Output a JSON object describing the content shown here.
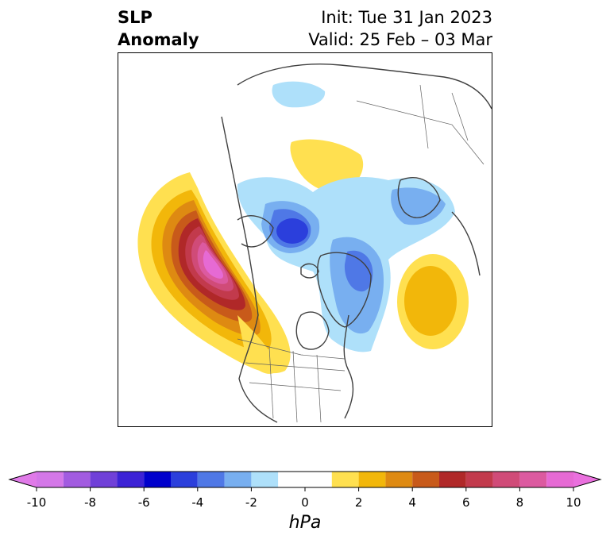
{
  "title": {
    "left_line1": "SLP",
    "left_line2": "Anomaly",
    "init": "Init: Tue 31 Jan 2023",
    "valid": "Valid: 25 Feb – 03 Mar"
  },
  "colorbar": {
    "units": "hPa",
    "tick_labels": [
      "-10",
      "-8",
      "-6",
      "-4",
      "-2",
      "0",
      "2",
      "4",
      "6",
      "8",
      "10"
    ],
    "bins": [
      {
        "range": [
          -10,
          -9
        ],
        "color": "#d477e8"
      },
      {
        "range": [
          -9,
          -8
        ],
        "color": "#a25be0"
      },
      {
        "range": [
          -8,
          -7
        ],
        "color": "#7040d8"
      },
      {
        "range": [
          -7,
          -6
        ],
        "color": "#3c22d6"
      },
      {
        "range": [
          -6,
          -5
        ],
        "color": "#0000cc"
      },
      {
        "range": [
          -5,
          -4
        ],
        "color": "#2b3fdc"
      },
      {
        "range": [
          -4,
          -3
        ],
        "color": "#4f78e6"
      },
      {
        "range": [
          -3,
          -2
        ],
        "color": "#78aff0"
      },
      {
        "range": [
          -2,
          -1
        ],
        "color": "#aee0fa"
      },
      {
        "range": [
          -1,
          1
        ],
        "color": "#ffffff"
      },
      {
        "range": [
          1,
          2
        ],
        "color": "#ffe050"
      },
      {
        "range": [
          2,
          3
        ],
        "color": "#f2b70a"
      },
      {
        "range": [
          3,
          4
        ],
        "color": "#de8a12"
      },
      {
        "range": [
          4,
          5
        ],
        "color": "#c85a1a"
      },
      {
        "range": [
          5,
          6
        ],
        "color": "#b02828"
      },
      {
        "range": [
          6,
          7
        ],
        "color": "#c23a4c"
      },
      {
        "range": [
          7,
          8
        ],
        "color": "#d04b78"
      },
      {
        "range": [
          8,
          9
        ],
        "color": "#dc5aa0"
      },
      {
        "range": [
          9,
          10
        ],
        "color": "#e66ad4"
      }
    ],
    "under_color": "#e07ae8",
    "over_color": "#ea70de"
  },
  "colors": {
    "positive_strong": "#e27ad6",
    "negative_strong": "#2b3fdc",
    "coastline": "#404040"
  }
}
